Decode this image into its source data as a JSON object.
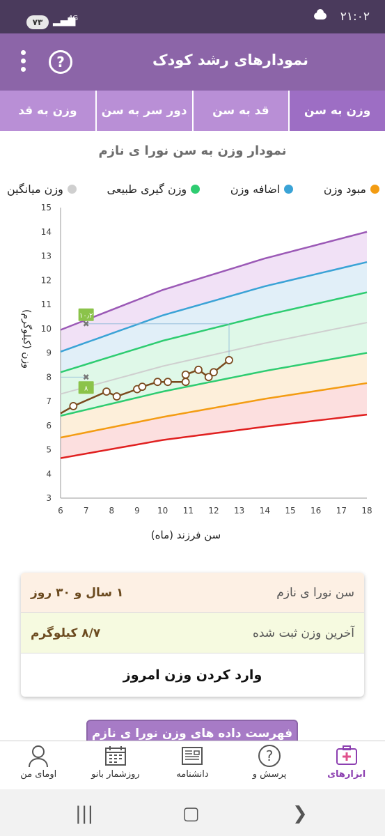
{
  "status": {
    "time": "۲۱:۰۲",
    "battery": "۷۳",
    "network": "4G"
  },
  "app_bar": {
    "title": "نمودارهای رشد کودک",
    "help_label": "?"
  },
  "tabs": [
    {
      "label": "وزن به سن",
      "active": true
    },
    {
      "label": "قد به سن",
      "active": false
    },
    {
      "label": "دور سر به سن",
      "active": false
    },
    {
      "label": "وزن به قد",
      "active": false
    }
  ],
  "chart_title": "نمودار وزن به سن نورا ی نازم",
  "legend": [
    {
      "label": "مبود وزن",
      "color": "#f39c12"
    },
    {
      "label": "اضافه وزن",
      "color": "#3aa3d6"
    },
    {
      "label": "وزن گیری طبیعی",
      "color": "#2ecc71"
    },
    {
      "label": "وزن میانگین",
      "color": "#cfcfcf"
    }
  ],
  "chart_data": {
    "type": "line",
    "title": "نمودار وزن به سن نورا ی نازم",
    "xlabel": "سن فرزند (ماه)",
    "ylabel": "وزن (کیلوگرم)",
    "xlim": [
      6,
      18
    ],
    "ylim": [
      3,
      15
    ],
    "x_ticks": [
      6,
      7,
      8,
      9,
      10,
      11,
      12,
      13,
      14,
      15,
      16,
      17,
      18
    ],
    "y_ticks": [
      3,
      4,
      5,
      6,
      7,
      8,
      9,
      10,
      11,
      12,
      13,
      14,
      15
    ],
    "grid": false,
    "reference_curves": [
      {
        "name": "top",
        "color": "#9b59b6",
        "values": [
          [
            6,
            9.95
          ],
          [
            10,
            11.6
          ],
          [
            14,
            12.9
          ],
          [
            18,
            14.0
          ]
        ]
      },
      {
        "name": "upper",
        "color": "#3aa3d6",
        "values": [
          [
            6,
            9.05
          ],
          [
            10,
            10.55
          ],
          [
            14,
            11.75
          ],
          [
            18,
            12.75
          ]
        ]
      },
      {
        "name": "normal-upper",
        "color": "#2ecc71",
        "values": [
          [
            6,
            8.2
          ],
          [
            10,
            9.5
          ],
          [
            14,
            10.55
          ],
          [
            18,
            11.5
          ]
        ]
      },
      {
        "name": "median",
        "color": "#cfcfcf",
        "values": [
          [
            6,
            7.3
          ],
          [
            10,
            8.45
          ],
          [
            14,
            9.4
          ],
          [
            18,
            10.25
          ]
        ]
      },
      {
        "name": "normal-lower",
        "color": "#2ecc71",
        "values": [
          [
            6,
            6.4
          ],
          [
            10,
            7.4
          ],
          [
            14,
            8.25
          ],
          [
            18,
            9.0
          ]
        ]
      },
      {
        "name": "under",
        "color": "#f39c12",
        "values": [
          [
            6,
            5.5
          ],
          [
            10,
            6.35
          ],
          [
            14,
            7.1
          ],
          [
            18,
            7.75
          ]
        ]
      },
      {
        "name": "bottom",
        "color": "#e02020",
        "values": [
          [
            6,
            4.65
          ],
          [
            10,
            5.4
          ],
          [
            14,
            5.95
          ],
          [
            18,
            6.45
          ]
        ]
      }
    ],
    "child_series": {
      "color": "#7a4a1e",
      "points": [
        [
          6.0,
          6.5
        ],
        [
          6.5,
          6.8
        ],
        [
          7.8,
          7.4
        ],
        [
          8.2,
          7.2
        ],
        [
          9.0,
          7.5
        ],
        [
          9.2,
          7.6
        ],
        [
          9.8,
          7.8
        ],
        [
          10.2,
          7.8
        ],
        [
          10.9,
          7.8
        ],
        [
          10.9,
          8.1
        ],
        [
          11.4,
          8.3
        ],
        [
          11.8,
          8.0
        ],
        [
          12.0,
          8.2
        ],
        [
          12.6,
          8.7
        ]
      ]
    },
    "markers": [
      {
        "x": 7,
        "y": 10.2,
        "label": "۱۰٫۲",
        "color": "#8bc34a"
      },
      {
        "x": 7,
        "y": 8.0,
        "label": "۸",
        "color": "#8bc34a"
      }
    ]
  },
  "info": {
    "age_label": "سن نورا ی نازم",
    "age_value": "۱ سال و ۳۰ روز",
    "weight_label": "آخرین وزن ثبت شده",
    "weight_value": "۸/۷ کیلوگرم",
    "enter_button": "وارد کردن وزن امروز"
  },
  "list_tab": "فهرست داده های وزن نورا ی نازم",
  "bottom_nav": [
    {
      "label": "ابزارهای",
      "icon": "medical-kit-icon",
      "active": true
    },
    {
      "label": "پرسش و",
      "icon": "question-icon",
      "active": false
    },
    {
      "label": "دانشنامه",
      "icon": "newspaper-icon",
      "active": false
    },
    {
      "label": "روزشمار بانو",
      "icon": "calendar-icon",
      "active": false
    },
    {
      "label": "اومای من",
      "icon": "profile-icon",
      "active": false
    }
  ]
}
